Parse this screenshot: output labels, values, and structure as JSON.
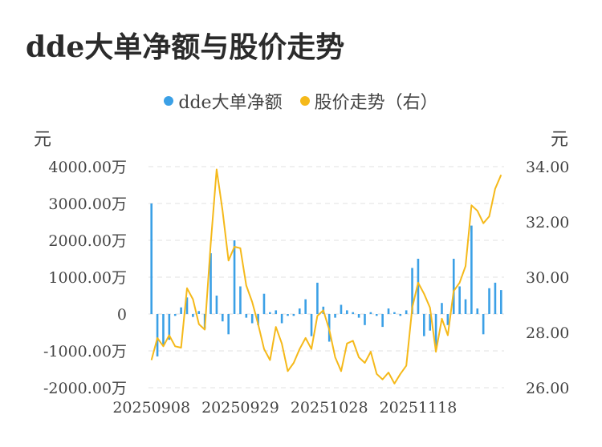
{
  "title": "dde大单净额与股价走势",
  "legend": {
    "bars_label": "dde大单净额",
    "line_label": "股价走势（右）"
  },
  "units": {
    "left": "元",
    "right": "元"
  },
  "colors": {
    "bars": "#3ba0e6",
    "line": "#f5b91a",
    "grid": "#e6e6e6"
  },
  "chart_data": {
    "type": "bar+line",
    "x_tick_labels": [
      "20250908",
      "20250929",
      "20251028",
      "20251118"
    ],
    "y_left": {
      "ticks": [
        "4000.00万",
        "3000.00万",
        "2000.00万",
        "1000.00万",
        "0",
        "-1000.00万",
        "-2000.00万"
      ],
      "ylim": [
        -2000,
        4000
      ],
      "unit": "万元"
    },
    "y_right": {
      "ticks": [
        "34.00",
        "32.00",
        "30.00",
        "28.00",
        "26.00"
      ],
      "ylim": [
        26,
        34
      ]
    },
    "series": [
      {
        "name": "dde大单净额",
        "type": "bar",
        "axis": "left",
        "values": [
          3000,
          -1150,
          -850,
          -700,
          -50,
          180,
          450,
          -80,
          80,
          -400,
          1650,
          500,
          -200,
          -550,
          2000,
          750,
          -100,
          -250,
          -300,
          550,
          50,
          100,
          -250,
          -50,
          -50,
          150,
          400,
          -600,
          850,
          200,
          -750,
          -100,
          250,
          100,
          50,
          -100,
          -300,
          50,
          -50,
          -350,
          150,
          50,
          -50,
          100,
          1250,
          1500,
          -600,
          -450,
          -950,
          300,
          -300,
          1500,
          750,
          400,
          2400,
          150,
          -550,
          700,
          850,
          650
        ]
      },
      {
        "name": "股价走势（右）",
        "type": "line",
        "axis": "right",
        "values": [
          27.0,
          27.8,
          27.5,
          27.9,
          27.5,
          27.45,
          29.6,
          29.2,
          28.3,
          28.1,
          31.2,
          33.9,
          32.4,
          30.6,
          31.1,
          31.05,
          29.7,
          29.1,
          28.3,
          27.4,
          27.0,
          28.2,
          27.6,
          26.6,
          26.9,
          27.4,
          27.8,
          27.4,
          28.6,
          28.8,
          28.1,
          27.1,
          26.6,
          27.6,
          27.7,
          27.1,
          26.9,
          27.3,
          26.5,
          26.3,
          26.55,
          26.15,
          26.5,
          26.8,
          28.9,
          29.8,
          29.4,
          28.9,
          27.3,
          28.5,
          27.9,
          29.5,
          29.8,
          30.4,
          32.6,
          32.4,
          31.95,
          32.2,
          33.2,
          33.7
        ]
      }
    ],
    "grid": true,
    "legend_position": "top-center"
  }
}
